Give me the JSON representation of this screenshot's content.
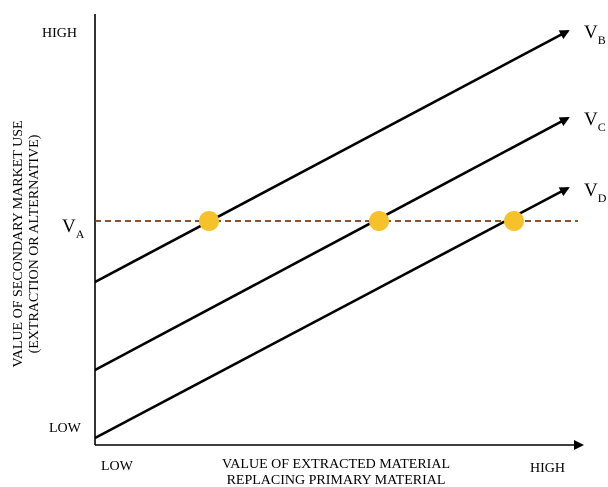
{
  "y_axis": {
    "high_label": "HIGH",
    "low_label": "LOW",
    "title_line1": "VALUE OF SECONDARY MARKET USE",
    "title_line2": "(EXTRACTION OR ALTERNATIVE)"
  },
  "x_axis": {
    "low_label": "LOW",
    "high_label": "HIGH",
    "title_line1": "VALUE OF EXTRACTED MATERIAL",
    "title_line2": "REPLACING PRIMARY MATERIAL"
  },
  "reference_line": {
    "main": "V",
    "sub": "A",
    "color": "#7b3a12"
  },
  "lines": [
    {
      "main": "V",
      "sub": "B"
    },
    {
      "main": "V",
      "sub": "C"
    },
    {
      "main": "V",
      "sub": "D"
    }
  ],
  "marker_color": "#f6c22b"
}
